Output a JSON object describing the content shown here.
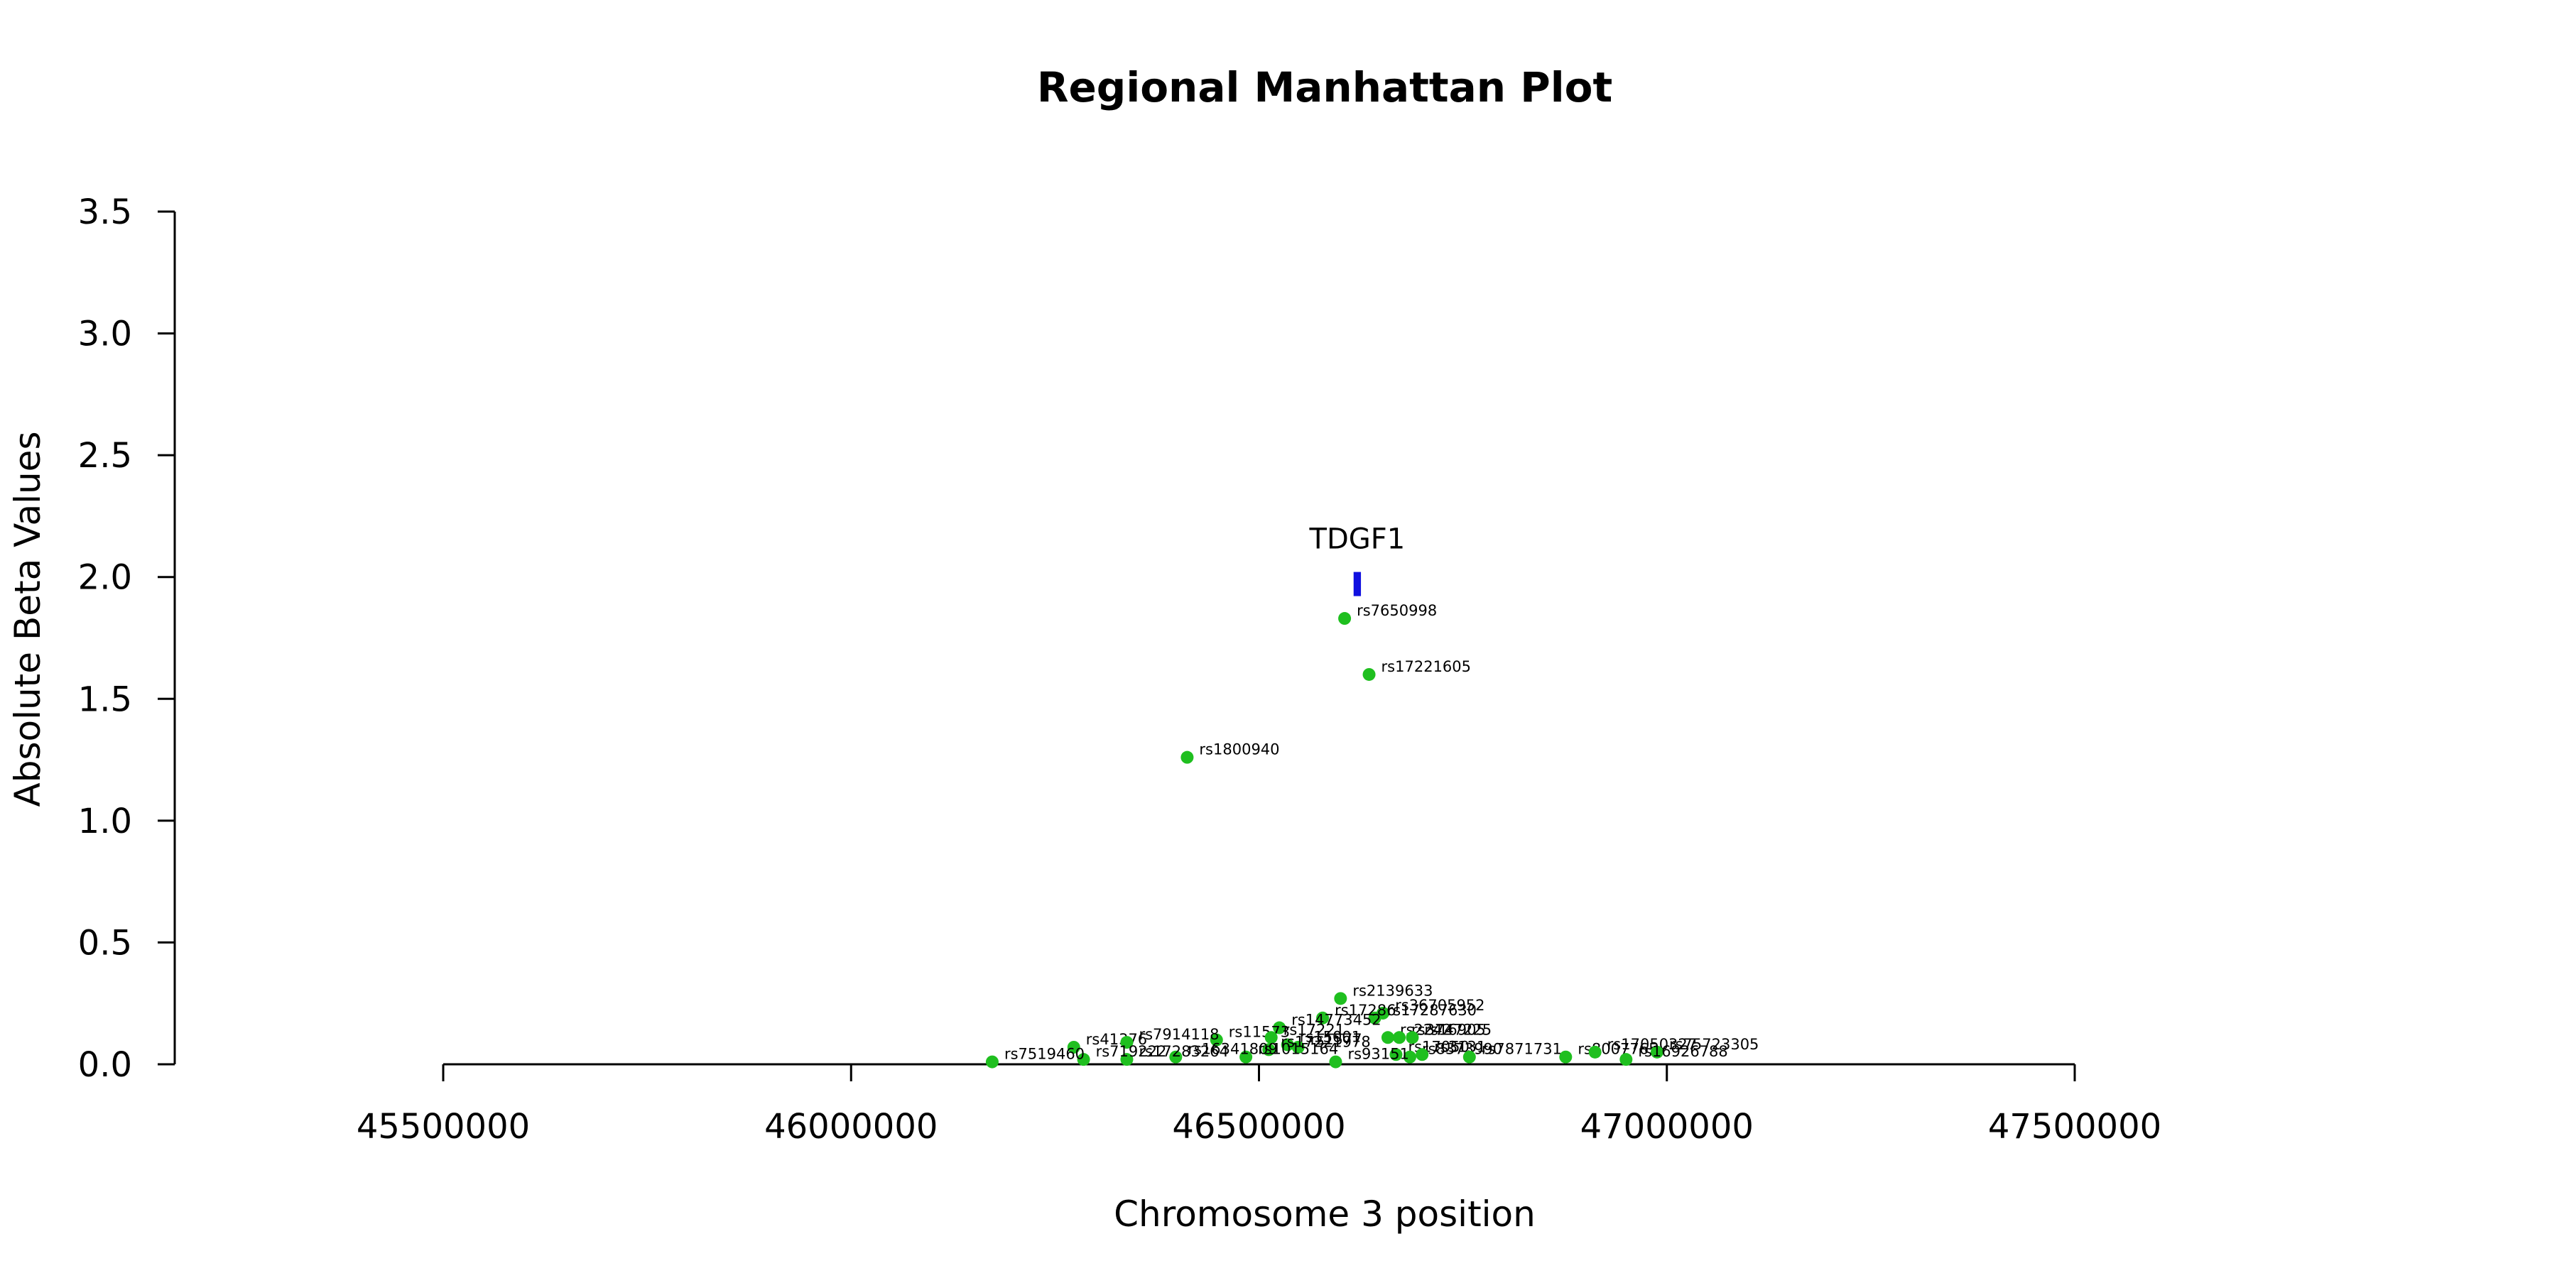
{
  "chart_data": {
    "type": "scatter",
    "title": "Regional Manhattan Plot",
    "xlabel": "Chromosome 3 position",
    "ylabel": "Absolute Beta Values",
    "xlim": [
      45500000,
      47500000
    ],
    "ylim": [
      0,
      3.5
    ],
    "x_ticks": [
      45500000,
      46000000,
      46500000,
      47000000,
      47500000
    ],
    "x_tick_labels": [
      "45500000",
      "46000000",
      "46500000",
      "47000000",
      "47500000"
    ],
    "y_ticks": [
      0,
      0.5,
      1,
      1.5,
      2,
      2.5,
      3,
      3.5
    ],
    "y_tick_labels": [
      "0.0",
      "0.5",
      "1.0",
      "1.5",
      "2.0",
      "2.5",
      "3.0",
      "3.5"
    ],
    "grid": false,
    "point_color": "#1fbf1f",
    "gene_color": "#1010e0",
    "gene": {
      "name": "TDGF1",
      "start": 46616000,
      "end": 46625000,
      "y": 1.98
    },
    "series": [
      {
        "points": [
          {
            "label": "rs7650998",
            "x": 46605000,
            "y": 1.83
          },
          {
            "label": "rs17221605",
            "x": 46635000,
            "y": 1.6
          },
          {
            "label": "rs1800940",
            "x": 46412000,
            "y": 1.26
          },
          {
            "label": "rs2139633",
            "x": 46600000,
            "y": 0.27
          },
          {
            "label": "rs36705952",
            "x": 46652000,
            "y": 0.21
          },
          {
            "label": "rs17287630",
            "x": 46642000,
            "y": 0.19
          },
          {
            "label": "rs17286",
            "x": 46578000,
            "y": 0.19
          },
          {
            "label": "rs14773452",
            "x": 46525000,
            "y": 0.15
          },
          {
            "label": "rs11573",
            "x": 46448000,
            "y": 0.1
          },
          {
            "label": "rs41376",
            "x": 46273000,
            "y": 0.07
          },
          {
            "label": "rs7914118",
            "x": 46338000,
            "y": 0.09
          },
          {
            "label": "rs17221",
            "x": 46515000,
            "y": 0.11
          },
          {
            "label": "rs15001",
            "x": 46535000,
            "y": 0.08
          },
          {
            "label": "rs1577",
            "x": 46548000,
            "y": 0.07
          },
          {
            "label": "rs17221978",
            "x": 46512000,
            "y": 0.06
          },
          {
            "label": "rs2242",
            "x": 46658000,
            "y": 0.11
          },
          {
            "label": "rs3747225",
            "x": 46672000,
            "y": 0.11
          },
          {
            "label": "rs16905",
            "x": 46688000,
            "y": 0.11
          },
          {
            "label": "rs17050",
            "x": 46668000,
            "y": 0.04
          },
          {
            "label": "rs8373990",
            "x": 46685000,
            "y": 0.03
          },
          {
            "label": "rs3131",
            "x": 46700000,
            "y": 0.04
          },
          {
            "label": "rs7871731",
            "x": 46758000,
            "y": 0.03
          },
          {
            "label": "rs93151",
            "x": 46594000,
            "y": 0.01
          },
          {
            "label": "rs1015164",
            "x": 46484000,
            "y": 0.03
          },
          {
            "label": "rs16341809",
            "x": 46398000,
            "y": 0.03
          },
          {
            "label": "rs17283264",
            "x": 46338000,
            "y": 0.02
          },
          {
            "label": "rs719222",
            "x": 46285000,
            "y": 0.02
          },
          {
            "label": "rs7519460",
            "x": 46173000,
            "y": 0.01
          },
          {
            "label": "rs8007765",
            "x": 46876000,
            "y": 0.03
          },
          {
            "label": "rs17050327",
            "x": 46912000,
            "y": 0.05
          },
          {
            "label": "rs75723305",
            "x": 46988000,
            "y": 0.05
          },
          {
            "label": "rs16926788",
            "x": 46950000,
            "y": 0.02
          }
        ]
      }
    ]
  }
}
